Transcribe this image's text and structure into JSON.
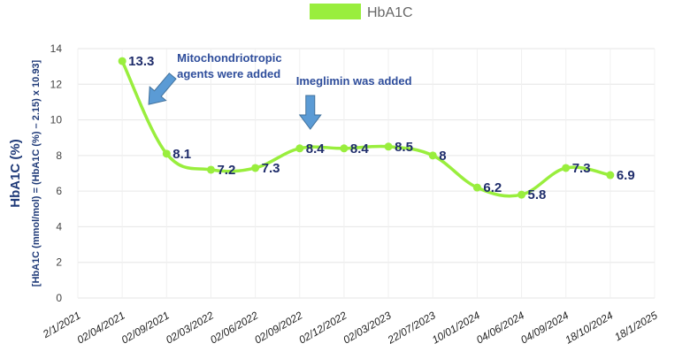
{
  "chart_data": {
    "type": "line",
    "legend": {
      "label": "HbA1C",
      "position": "top-center"
    },
    "ylabel": "HbA1C (%)",
    "ylabel_sub": "[HbA1C (mmol/mol) = (HbA1C (%) – 2.15) x 10.93]",
    "ylim": [
      0,
      14
    ],
    "yticks": [
      "0",
      "2",
      "4",
      "6",
      "8",
      "10",
      "12",
      "14"
    ],
    "xticks": [
      "2/1/2021",
      "02/04/2021",
      "02/09/2021",
      "02/03/2022",
      "02/06/2022",
      "02/09/2022",
      "02/12/2022",
      "02/03/2023",
      "22/07/2023",
      "10/01/2024",
      "04/06/2024",
      "04/09/2024",
      "18/10/2024",
      "18/1/2025"
    ],
    "grid": true,
    "series": [
      {
        "name": "HbA1C",
        "color": "#99ee3d",
        "x": [
          "02/04/2021",
          "02/09/2021",
          "02/03/2022",
          "02/06/2022",
          "02/09/2022",
          "02/12/2022",
          "02/03/2023",
          "22/07/2023",
          "10/01/2024",
          "04/06/2024",
          "04/09/2024",
          "18/10/2024"
        ],
        "values": [
          13.3,
          8.1,
          7.2,
          7.3,
          8.4,
          8.4,
          8.5,
          8,
          6.2,
          5.8,
          7.3,
          6.9
        ],
        "labels": [
          "13.3",
          "8.1",
          "7.2",
          "7.3",
          "8.4",
          "8.4",
          "8.5",
          "8",
          "6.2",
          "5.8",
          "7.3",
          "6.9"
        ]
      }
    ],
    "annotations": [
      {
        "lines": [
          "Mitochondriotropic",
          "agents were added"
        ],
        "anchor": "02/04/2021",
        "arrow_color": "#5b9bd5"
      },
      {
        "lines": [
          "Imeglimin was added"
        ],
        "anchor": "02/09/2022",
        "arrow_color": "#5b9bd5"
      }
    ]
  }
}
